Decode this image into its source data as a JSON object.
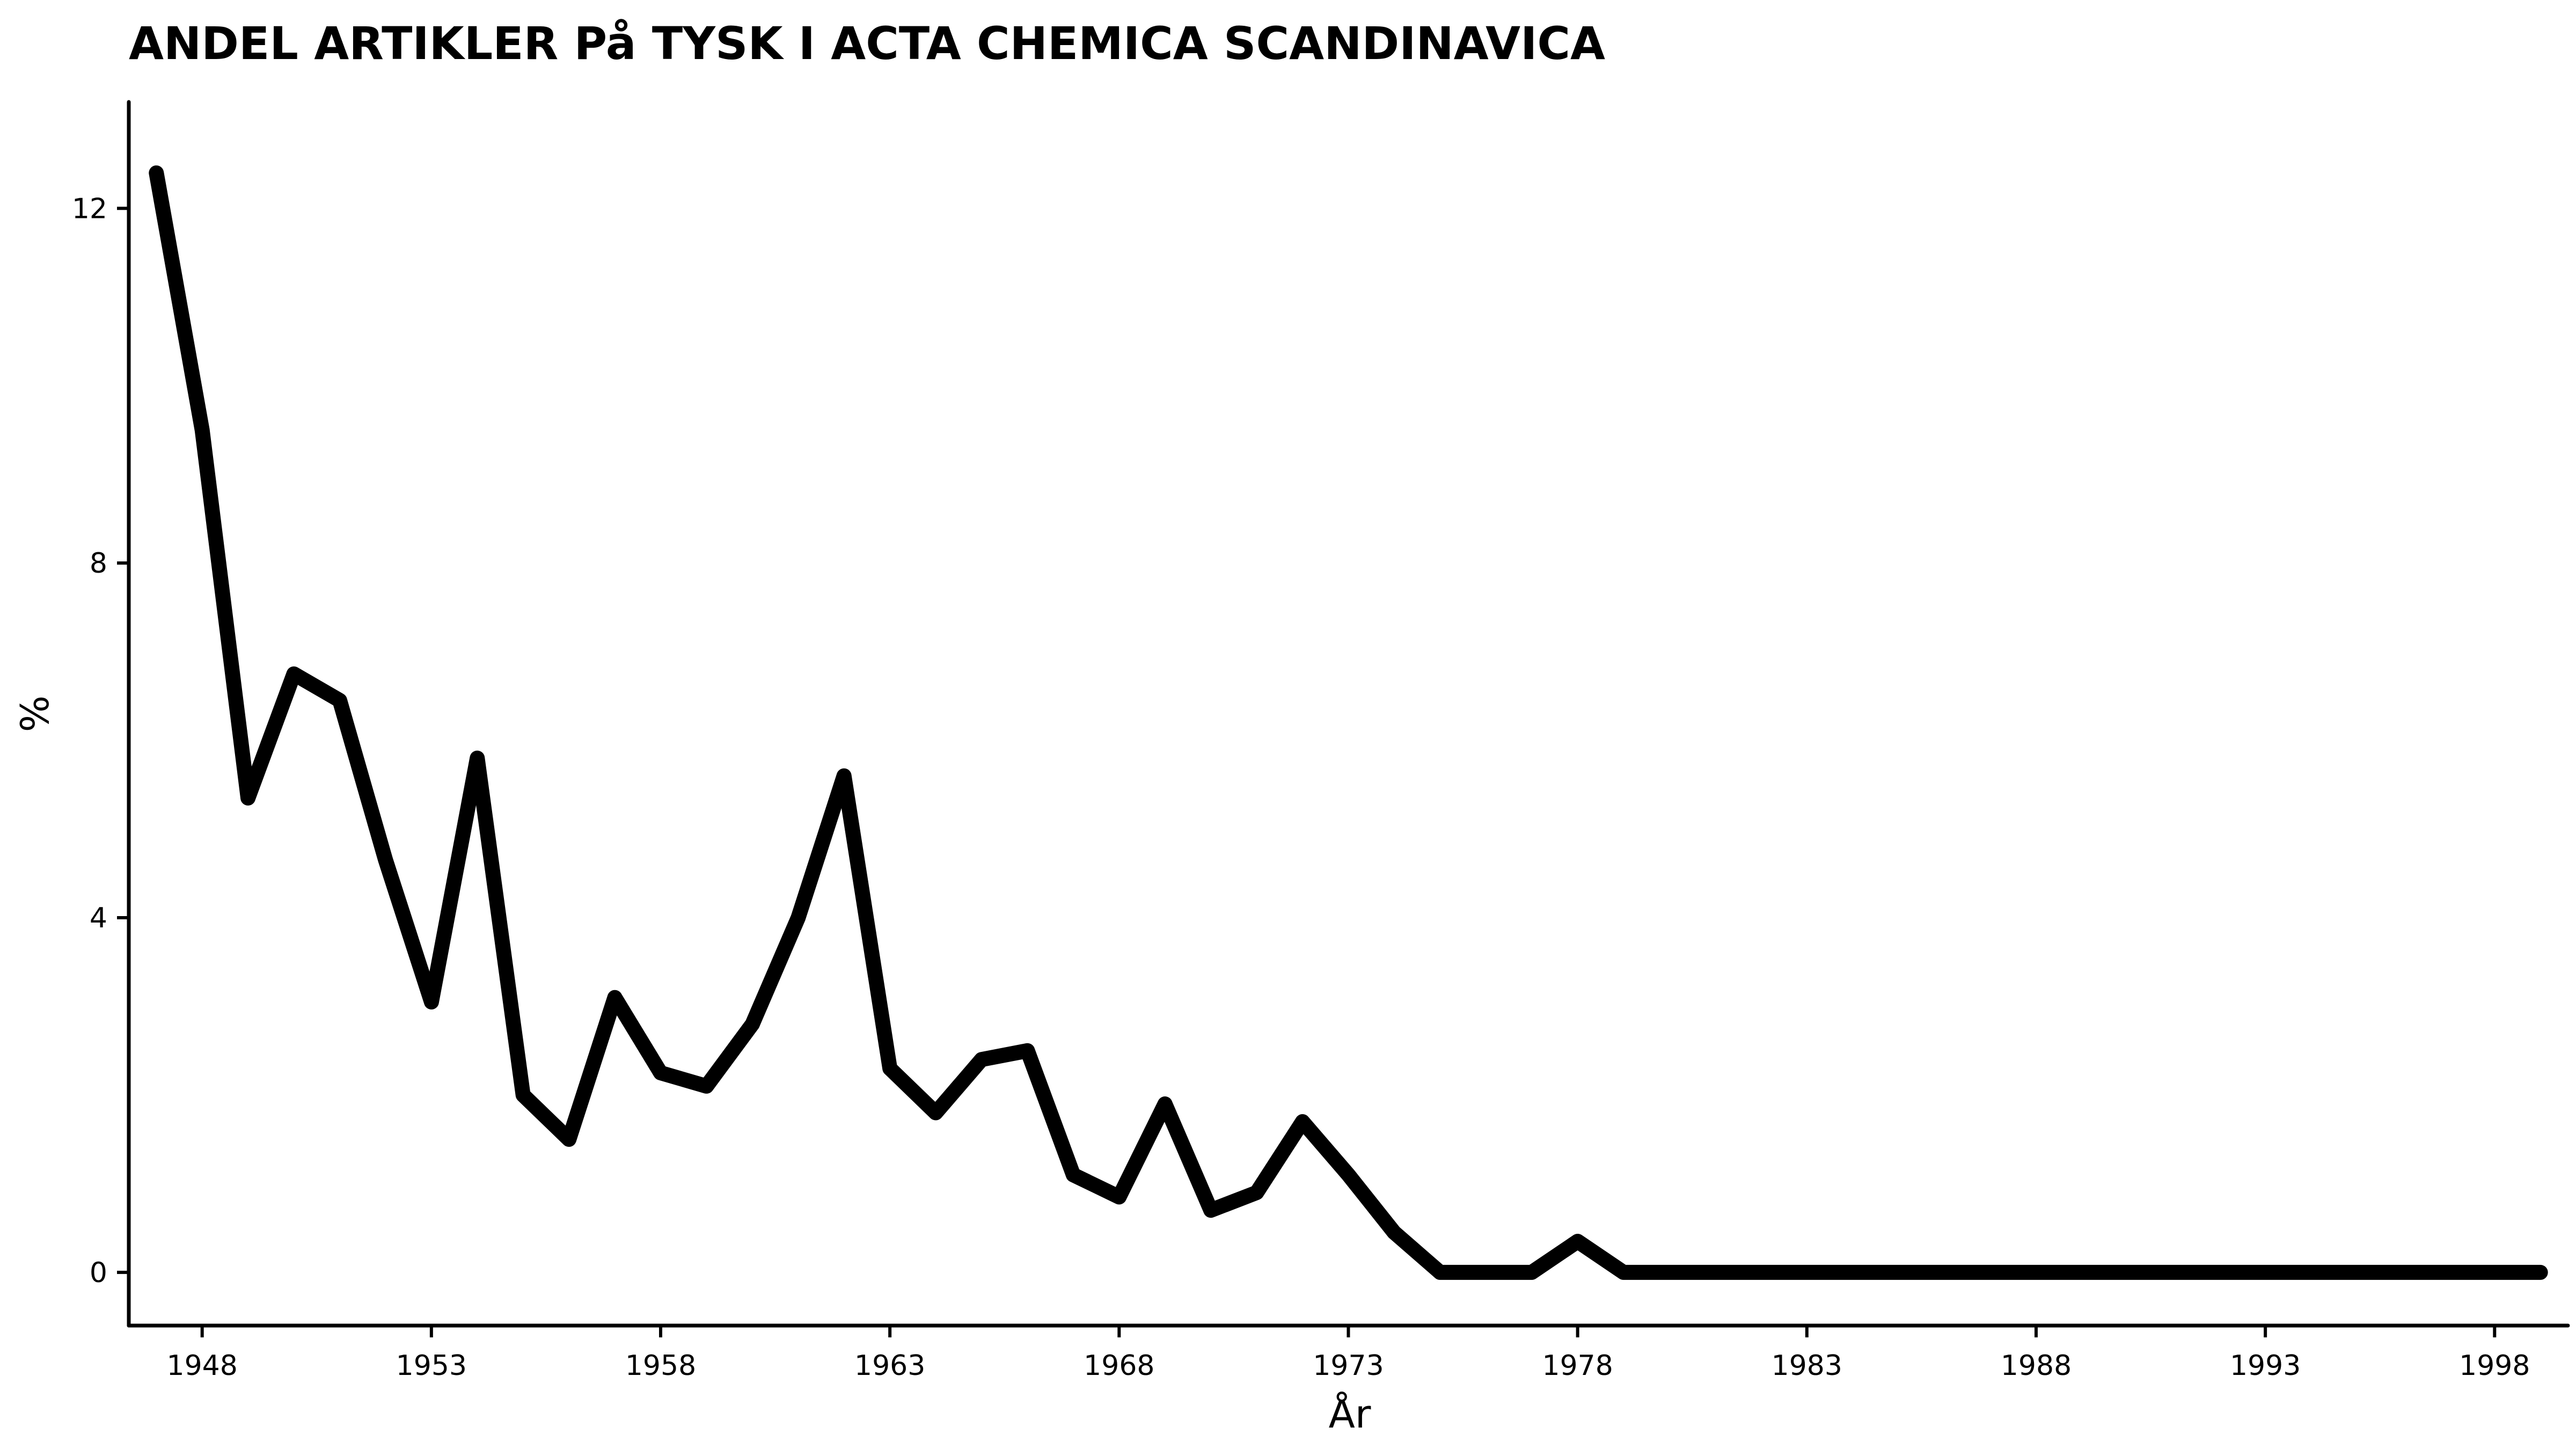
{
  "chart_data": {
    "type": "line",
    "title": "ANDEL ARTIKLER På TYSK I ACTA CHEMICA SCANDINAVICA",
    "xlabel": "År",
    "ylabel": "%",
    "xlim": [
      1946.4,
      1999.6
    ],
    "ylim": [
      -0.6,
      13.2
    ],
    "x_ticks": [
      1948,
      1953,
      1958,
      1963,
      1968,
      1973,
      1978,
      1983,
      1988,
      1993,
      1998
    ],
    "y_ticks": [
      0,
      4,
      8,
      12
    ],
    "grid": false,
    "series": [
      {
        "color": "#000000",
        "x": [
          1947,
          1948,
          1949,
          1950,
          1951,
          1952,
          1953,
          1954,
          1955,
          1956,
          1957,
          1958,
          1959,
          1960,
          1961,
          1962,
          1963,
          1964,
          1965,
          1966,
          1967,
          1968,
          1969,
          1970,
          1971,
          1972,
          1973,
          1974,
          1975,
          1976,
          1977,
          1978,
          1979,
          1980,
          1981,
          1982,
          1983,
          1984,
          1985,
          1986,
          1987,
          1988,
          1989,
          1990,
          1991,
          1992,
          1993,
          1994,
          1995,
          1996,
          1997,
          1998,
          1999
        ],
        "values": [
          12.4,
          9.5,
          5.35,
          6.75,
          6.45,
          4.65,
          3.05,
          5.8,
          2.0,
          1.5,
          3.1,
          2.25,
          2.1,
          2.8,
          4.0,
          5.6,
          2.3,
          1.8,
          2.4,
          2.5,
          1.1,
          0.85,
          1.9,
          0.7,
          0.9,
          1.7,
          1.1,
          0.45,
          0.0,
          0.0,
          0.0,
          0.35,
          0.0,
          0.0,
          0.0,
          0.0,
          0.0,
          0.0,
          0.0,
          0.0,
          0.0,
          0.0,
          0.0,
          0.0,
          0.0,
          0.0,
          0.0,
          0.0,
          0.0,
          0.0,
          0.0,
          0.0,
          0.0
        ]
      }
    ]
  }
}
